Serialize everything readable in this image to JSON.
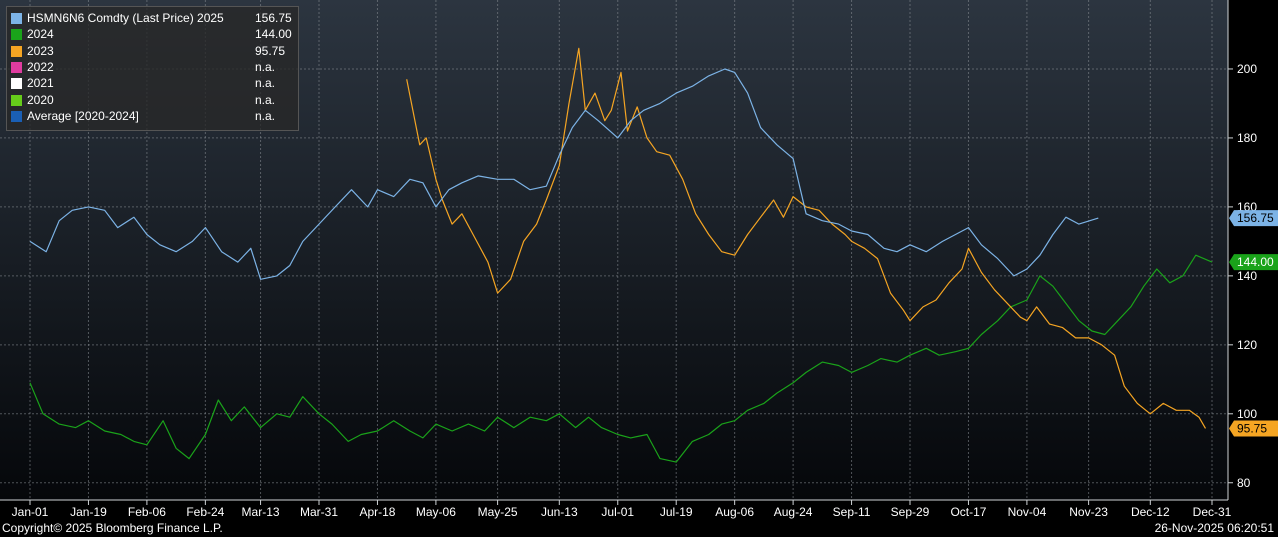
{
  "chart_data": {
    "type": "line",
    "ylim": [
      75,
      220
    ],
    "y_ticks": [
      80,
      100,
      120,
      140,
      160,
      180,
      200
    ],
    "x_domain": [
      "2025-01-01",
      "2025-12-31"
    ],
    "x_tick_labels": [
      "Jan-01",
      "Jan-19",
      "Feb-06",
      "Feb-24",
      "Mar-13",
      "Mar-31",
      "Apr-18",
      "May-06",
      "May-25",
      "Jun-13",
      "Jul-01",
      "Jul-19",
      "Aug-06",
      "Aug-24",
      "Sep-11",
      "Sep-29",
      "Oct-17",
      "Nov-04",
      "Nov-23",
      "Dec-12",
      "Dec-31"
    ],
    "x_tick_dates": [
      "2025-01-01",
      "2025-01-19",
      "2025-02-06",
      "2025-02-24",
      "2025-03-13",
      "2025-03-31",
      "2025-04-18",
      "2025-05-06",
      "2025-05-25",
      "2025-06-13",
      "2025-07-01",
      "2025-07-19",
      "2025-08-06",
      "2025-08-24",
      "2025-09-11",
      "2025-09-29",
      "2025-10-17",
      "2025-11-04",
      "2025-11-23",
      "2025-12-12",
      "2025-12-31"
    ],
    "grid": true,
    "legend_position": "top-left",
    "series": [
      {
        "name": "HSMN6N6 Comdty (Last Price) 2025",
        "legend_value": "156.75",
        "badge": "156.75",
        "badge_value": 156.75,
        "color": "#7cb3e6",
        "points": [
          [
            "2025-01-01",
            150
          ],
          [
            "2025-01-06",
            147
          ],
          [
            "2025-01-10",
            156
          ],
          [
            "2025-01-14",
            159
          ],
          [
            "2025-01-19",
            160
          ],
          [
            "2025-01-24",
            159
          ],
          [
            "2025-01-28",
            154
          ],
          [
            "2025-02-02",
            157
          ],
          [
            "2025-02-06",
            152
          ],
          [
            "2025-02-10",
            149
          ],
          [
            "2025-02-15",
            147
          ],
          [
            "2025-02-20",
            150
          ],
          [
            "2025-02-24",
            154
          ],
          [
            "2025-03-01",
            147
          ],
          [
            "2025-03-06",
            144
          ],
          [
            "2025-03-10",
            148
          ],
          [
            "2025-03-13",
            139
          ],
          [
            "2025-03-18",
            140
          ],
          [
            "2025-03-22",
            143
          ],
          [
            "2025-03-26",
            150
          ],
          [
            "2025-03-31",
            155
          ],
          [
            "2025-04-05",
            160
          ],
          [
            "2025-04-10",
            165
          ],
          [
            "2025-04-15",
            160
          ],
          [
            "2025-04-18",
            165
          ],
          [
            "2025-04-23",
            163
          ],
          [
            "2025-04-28",
            168
          ],
          [
            "2025-05-02",
            167
          ],
          [
            "2025-05-06",
            160
          ],
          [
            "2025-05-10",
            165
          ],
          [
            "2025-05-14",
            167
          ],
          [
            "2025-05-19",
            169
          ],
          [
            "2025-05-25",
            168
          ],
          [
            "2025-05-30",
            168
          ],
          [
            "2025-06-04",
            165
          ],
          [
            "2025-06-09",
            166
          ],
          [
            "2025-06-13",
            175
          ],
          [
            "2025-06-17",
            183
          ],
          [
            "2025-06-21",
            188
          ],
          [
            "2025-06-25",
            185
          ],
          [
            "2025-07-01",
            180
          ],
          [
            "2025-07-05",
            185
          ],
          [
            "2025-07-09",
            188
          ],
          [
            "2025-07-14",
            190
          ],
          [
            "2025-07-19",
            193
          ],
          [
            "2025-07-24",
            195
          ],
          [
            "2025-07-29",
            198
          ],
          [
            "2025-08-03",
            200
          ],
          [
            "2025-08-06",
            199
          ],
          [
            "2025-08-10",
            193
          ],
          [
            "2025-08-14",
            183
          ],
          [
            "2025-08-19",
            178
          ],
          [
            "2025-08-24",
            174
          ],
          [
            "2025-08-28",
            158
          ],
          [
            "2025-09-02",
            156
          ],
          [
            "2025-09-07",
            155
          ],
          [
            "2025-09-11",
            153
          ],
          [
            "2025-09-16",
            152
          ],
          [
            "2025-09-21",
            148
          ],
          [
            "2025-09-25",
            147
          ],
          [
            "2025-09-29",
            149
          ],
          [
            "2025-10-04",
            147
          ],
          [
            "2025-10-09",
            150
          ],
          [
            "2025-10-13",
            152
          ],
          [
            "2025-10-17",
            154
          ],
          [
            "2025-10-21",
            149
          ],
          [
            "2025-10-26",
            145
          ],
          [
            "2025-10-31",
            140
          ],
          [
            "2025-11-04",
            142
          ],
          [
            "2025-11-08",
            146
          ],
          [
            "2025-11-12",
            152
          ],
          [
            "2025-11-16",
            157
          ],
          [
            "2025-11-20",
            155
          ],
          [
            "2025-11-26",
            156.75
          ]
        ]
      },
      {
        "name": "2024",
        "legend_value": "144.00",
        "badge": "144.00",
        "badge_value": 144.0,
        "color": "#1aa31a",
        "points": [
          [
            "2025-01-01",
            109
          ],
          [
            "2025-01-05",
            100
          ],
          [
            "2025-01-10",
            97
          ],
          [
            "2025-01-15",
            96
          ],
          [
            "2025-01-19",
            98
          ],
          [
            "2025-01-24",
            95
          ],
          [
            "2025-01-29",
            94
          ],
          [
            "2025-02-02",
            92
          ],
          [
            "2025-02-06",
            91
          ],
          [
            "2025-02-11",
            98
          ],
          [
            "2025-02-15",
            90
          ],
          [
            "2025-02-19",
            87
          ],
          [
            "2025-02-24",
            94
          ],
          [
            "2025-02-28",
            104
          ],
          [
            "2025-03-04",
            98
          ],
          [
            "2025-03-08",
            102
          ],
          [
            "2025-03-13",
            96
          ],
          [
            "2025-03-18",
            100
          ],
          [
            "2025-03-22",
            99
          ],
          [
            "2025-03-26",
            105
          ],
          [
            "2025-03-31",
            100
          ],
          [
            "2025-04-04",
            97
          ],
          [
            "2025-04-09",
            92
          ],
          [
            "2025-04-13",
            94
          ],
          [
            "2025-04-18",
            95
          ],
          [
            "2025-04-23",
            98
          ],
          [
            "2025-04-28",
            95
          ],
          [
            "2025-05-02",
            93
          ],
          [
            "2025-05-06",
            97
          ],
          [
            "2025-05-11",
            95
          ],
          [
            "2025-05-16",
            97
          ],
          [
            "2025-05-21",
            95
          ],
          [
            "2025-05-25",
            99
          ],
          [
            "2025-05-30",
            96
          ],
          [
            "2025-06-04",
            99
          ],
          [
            "2025-06-09",
            98
          ],
          [
            "2025-06-13",
            100
          ],
          [
            "2025-06-18",
            96
          ],
          [
            "2025-06-22",
            99
          ],
          [
            "2025-06-26",
            96
          ],
          [
            "2025-07-01",
            94
          ],
          [
            "2025-07-05",
            93
          ],
          [
            "2025-07-10",
            94
          ],
          [
            "2025-07-14",
            87
          ],
          [
            "2025-07-19",
            86
          ],
          [
            "2025-07-24",
            92
          ],
          [
            "2025-07-29",
            94
          ],
          [
            "2025-08-02",
            97
          ],
          [
            "2025-08-06",
            98
          ],
          [
            "2025-08-10",
            101
          ],
          [
            "2025-08-15",
            103
          ],
          [
            "2025-08-19",
            106
          ],
          [
            "2025-08-24",
            109
          ],
          [
            "2025-08-28",
            112
          ],
          [
            "2025-09-02",
            115
          ],
          [
            "2025-09-07",
            114
          ],
          [
            "2025-09-11",
            112
          ],
          [
            "2025-09-16",
            114
          ],
          [
            "2025-09-20",
            116
          ],
          [
            "2025-09-25",
            115
          ],
          [
            "2025-09-29",
            117
          ],
          [
            "2025-10-04",
            119
          ],
          [
            "2025-10-08",
            117
          ],
          [
            "2025-10-13",
            118
          ],
          [
            "2025-10-17",
            119
          ],
          [
            "2025-10-21",
            123
          ],
          [
            "2025-10-26",
            127
          ],
          [
            "2025-10-30",
            131
          ],
          [
            "2025-11-04",
            133
          ],
          [
            "2025-11-08",
            140
          ],
          [
            "2025-11-12",
            137
          ],
          [
            "2025-11-16",
            132
          ],
          [
            "2025-11-20",
            127
          ],
          [
            "2025-11-24",
            124
          ],
          [
            "2025-11-28",
            123
          ],
          [
            "2025-12-02",
            127
          ],
          [
            "2025-12-06",
            131
          ],
          [
            "2025-12-10",
            137
          ],
          [
            "2025-12-14",
            142
          ],
          [
            "2025-12-18",
            138
          ],
          [
            "2025-12-22",
            140
          ],
          [
            "2025-12-26",
            146
          ],
          [
            "2025-12-31",
            144
          ]
        ]
      },
      {
        "name": "2023",
        "legend_value": "95.75",
        "badge": "95.75",
        "badge_value": 95.75,
        "color": "#f5a523",
        "points": [
          [
            "2025-04-27",
            197
          ],
          [
            "2025-05-01",
            178
          ],
          [
            "2025-05-03",
            180
          ],
          [
            "2025-05-06",
            168
          ],
          [
            "2025-05-08",
            162
          ],
          [
            "2025-05-11",
            155
          ],
          [
            "2025-05-14",
            158
          ],
          [
            "2025-05-18",
            151
          ],
          [
            "2025-05-22",
            144
          ],
          [
            "2025-05-25",
            135
          ],
          [
            "2025-05-29",
            139
          ],
          [
            "2025-06-02",
            150
          ],
          [
            "2025-06-06",
            155
          ],
          [
            "2025-06-09",
            162
          ],
          [
            "2025-06-13",
            172
          ],
          [
            "2025-06-16",
            190
          ],
          [
            "2025-06-19",
            206
          ],
          [
            "2025-06-21",
            188
          ],
          [
            "2025-06-24",
            193
          ],
          [
            "2025-06-27",
            185
          ],
          [
            "2025-06-29",
            188
          ],
          [
            "2025-07-02",
            199
          ],
          [
            "2025-07-04",
            182
          ],
          [
            "2025-07-07",
            189
          ],
          [
            "2025-07-10",
            180
          ],
          [
            "2025-07-13",
            176
          ],
          [
            "2025-07-17",
            175
          ],
          [
            "2025-07-21",
            168
          ],
          [
            "2025-07-25",
            158
          ],
          [
            "2025-07-29",
            152
          ],
          [
            "2025-08-02",
            147
          ],
          [
            "2025-08-06",
            146
          ],
          [
            "2025-08-10",
            152
          ],
          [
            "2025-08-14",
            157
          ],
          [
            "2025-08-18",
            162
          ],
          [
            "2025-08-21",
            157
          ],
          [
            "2025-08-24",
            163
          ],
          [
            "2025-08-28",
            160
          ],
          [
            "2025-09-01",
            159
          ],
          [
            "2025-09-05",
            155
          ],
          [
            "2025-09-09",
            152
          ],
          [
            "2025-09-11",
            150
          ],
          [
            "2025-09-15",
            148
          ],
          [
            "2025-09-19",
            145
          ],
          [
            "2025-09-23",
            135
          ],
          [
            "2025-09-27",
            130
          ],
          [
            "2025-09-29",
            127
          ],
          [
            "2025-10-03",
            131
          ],
          [
            "2025-10-07",
            133
          ],
          [
            "2025-10-11",
            138
          ],
          [
            "2025-10-15",
            142
          ],
          [
            "2025-10-17",
            148
          ],
          [
            "2025-10-21",
            141
          ],
          [
            "2025-10-25",
            136
          ],
          [
            "2025-10-29",
            132
          ],
          [
            "2025-11-02",
            128
          ],
          [
            "2025-11-04",
            127
          ],
          [
            "2025-11-07",
            131
          ],
          [
            "2025-11-11",
            126
          ],
          [
            "2025-11-15",
            125
          ],
          [
            "2025-11-19",
            122
          ],
          [
            "2025-11-23",
            122
          ],
          [
            "2025-11-27",
            120
          ],
          [
            "2025-12-01",
            117
          ],
          [
            "2025-12-04",
            108
          ],
          [
            "2025-12-08",
            103
          ],
          [
            "2025-12-12",
            100
          ],
          [
            "2025-12-16",
            103
          ],
          [
            "2025-12-20",
            101
          ],
          [
            "2025-12-24",
            101
          ],
          [
            "2025-12-27",
            99
          ],
          [
            "2025-12-29",
            95.75
          ]
        ]
      },
      {
        "name": "2022",
        "legend_value": "n.a.",
        "color": "#e03ca0",
        "points": []
      },
      {
        "name": "2021",
        "legend_value": "n.a.",
        "color": "#ffffff",
        "points": []
      },
      {
        "name": "2020",
        "legend_value": "n.a.",
        "color": "#66cc1a",
        "points": []
      },
      {
        "name": "Average  [2020-2024]",
        "legend_value": "n.a.",
        "color": "#1a5fb4",
        "points": []
      }
    ]
  },
  "footer": {
    "copyright": "Copyright© 2025 Bloomberg Finance L.P.",
    "timestamp": "26-Nov-2025 06:20:51"
  }
}
